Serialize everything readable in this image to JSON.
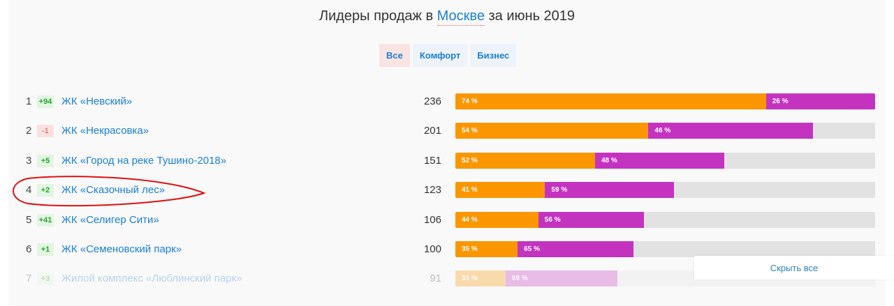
{
  "header": {
    "title_prefix": "Лидеры продаж в",
    "city": "Москве",
    "title_suffix": "за июнь 2019"
  },
  "tabs": [
    {
      "label": "Все",
      "active": true
    },
    {
      "label": "Комфорт",
      "active": false
    },
    {
      "label": "Бизнес",
      "active": false
    }
  ],
  "colors": {
    "segment_a": "#fb9600",
    "segment_b": "#c433c0",
    "track": "#e2e2e2",
    "link": "#1a7fd4",
    "annotation": "#e01010"
  },
  "max_count": 236,
  "rows": [
    {
      "rank": "1",
      "change": "+94",
      "trend": "up",
      "name": "ЖК «Невский»",
      "count": 236,
      "a_pct": 74,
      "b_pct": 26,
      "a_label": "74 %",
      "b_label": "26 %"
    },
    {
      "rank": "2",
      "change": "-1",
      "trend": "down",
      "name": "ЖК «Некрасовка»",
      "count": 201,
      "a_pct": 54,
      "b_pct": 46,
      "a_label": "54 %",
      "b_label": "46 %"
    },
    {
      "rank": "3",
      "change": "+5",
      "trend": "up",
      "name": "ЖК «Город на реке Тушино-2018»",
      "count": 151,
      "a_pct": 52,
      "b_pct": 48,
      "a_label": "52 %",
      "b_label": "48 %"
    },
    {
      "rank": "4",
      "change": "+2",
      "trend": "up",
      "name": "ЖК «Сказочный лес»",
      "count": 123,
      "a_pct": 41,
      "b_pct": 59,
      "a_label": "41 %",
      "b_label": "59 %",
      "circled": true
    },
    {
      "rank": "5",
      "change": "+41",
      "trend": "up",
      "name": "ЖК «Селигер Сити»",
      "count": 106,
      "a_pct": 44,
      "b_pct": 56,
      "a_label": "44 %",
      "b_label": "56 %"
    },
    {
      "rank": "6",
      "change": "+1",
      "trend": "up",
      "name": "ЖК «Семеновский парк»",
      "count": 100,
      "a_pct": 35,
      "b_pct": 65,
      "a_label": "35 %",
      "b_label": "65 %"
    },
    {
      "rank": "7",
      "change": "+3",
      "trend": "up",
      "name": "Жилой комплекс «Люблинский парк»",
      "count": 91,
      "a_pct": 31,
      "b_pct": 69,
      "a_label": "31 %",
      "b_label": "69 %",
      "faded": true
    }
  ],
  "hide_all_label": "Скрыть все"
}
